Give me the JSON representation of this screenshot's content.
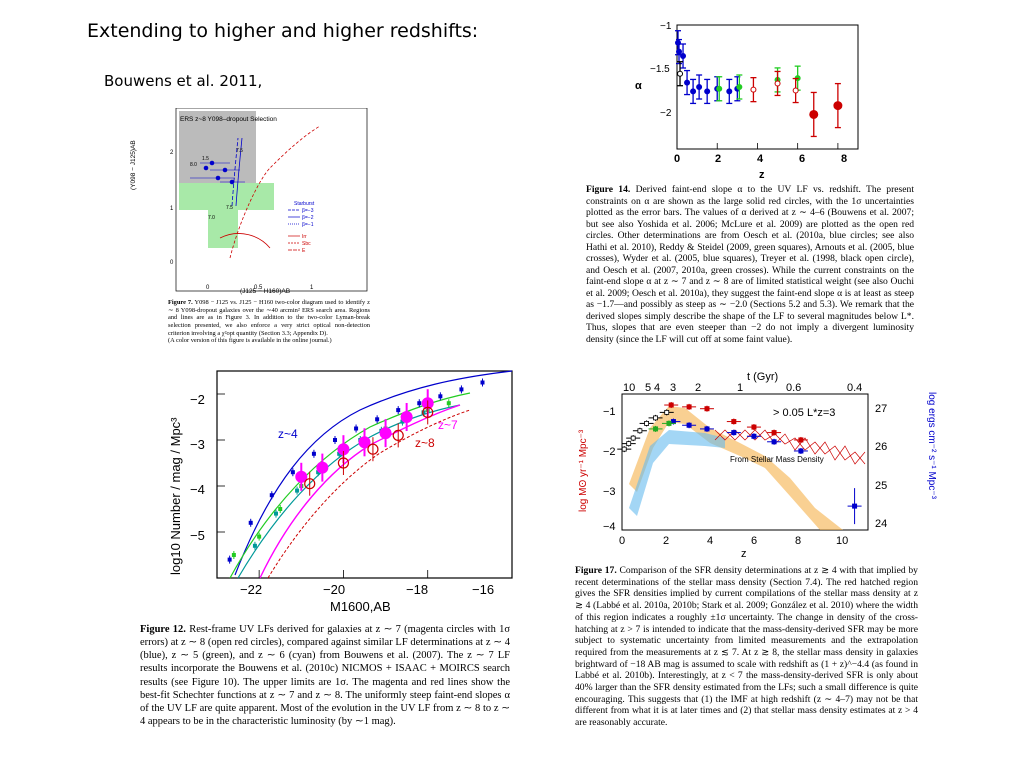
{
  "slide": {
    "title": "Extending to higher and higher redshifts:",
    "subtitle": "Bouwens et al. 2011,"
  },
  "fig7": {
    "label": "Figure 7.",
    "caption": "Y098 − J125 vs. J125 − H160 two-color diagram used to identify z ∼ 8 Y098-dropout galaxies over the ∼40 arcmin² ERS search area. Regions and lines are as in Figure 3. In addition to the two-color Lyman-break selection presented, we also enforce a very strict optical non-detection criterion involving a χ²opt quantity (Section 3.3; Appendix D).",
    "note": "(A color version of this figure is available in the online journal.)",
    "panel_title": "ERS z~8 Y098–dropout Selection",
    "xlabel": "(J125 − H160)AB",
    "ylabel": "(Y098 − J125)AB",
    "xticks": [
      "0",
      "0.5",
      "1"
    ],
    "yticks": [
      "0",
      "1",
      "2"
    ],
    "legend": [
      "Starburst",
      "β=−3",
      "β=−2",
      "β=−1",
      "Irr",
      "Sbc",
      "E"
    ],
    "markers": [
      "1.5",
      "7.5",
      "7.0",
      "8.0",
      "7.5"
    ]
  },
  "fig14": {
    "label": "Figure 14.",
    "caption": "Derived faint-end slope α to the UV LF vs. redshift. The present constraints on α are shown as the large solid red circles, with the 1σ uncertainties plotted as the error bars. The values of α derived at z ∼ 4–6 (Bouwens et al. 2007; but see also Yoshida et al. 2006; McLure et al. 2009) are plotted as the open red circles. Other determinations are from Oesch et al. (2010a, blue circles; see also Hathi et al. 2010), Reddy & Steidel (2009, green squares), Arnouts et al. (2005, blue crosses), Wyder et al. (2005, blue squares), Treyer et al. (1998, black open circle), and Oesch et al. (2007, 2010a, green crosses). While the current constraints on the faint-end slope α at z ∼ 7 and z ∼ 8 are of limited statistical weight (see also Ouchi et al. 2009; Oesch et al. 2010a), they suggest the faint-end slope α is at least as steep as −1.7—and possibly as steep as ∼ −2.0 (Sections 5.2 and 5.3). We remark that the derived slopes simply describe the shape of the LF to several magnitudes below L*. Thus, slopes that are even steeper than −2 do not imply a divergent luminosity density (since the LF will cut off at some faint value).",
    "ylabel": "α",
    "xlabel": "z",
    "xticks": [
      "0",
      "2",
      "4",
      "6",
      "8"
    ],
    "yticks": [
      "−1",
      "−1.5",
      "−2"
    ]
  },
  "fig12": {
    "label": "Figure 12.",
    "caption": "Rest-frame UV LFs derived for galaxies at z ∼ 7 (magenta circles with 1σ errors) at z ∼ 8 (open red circles), compared against similar LF determinations at z ∼ 4 (blue), z ∼ 5 (green), and z ∼ 6 (cyan) from Bouwens et al. (2007). The z ∼ 7 LF results incorporate the Bouwens et al. (2010c) NICMOS + ISAAC + MOIRCS search results (see Figure 10). The upper limits are 1σ. The magenta and red lines show the best-fit Schechter functions at z ∼ 7 and z ∼ 8. The uniformly steep faint-end slopes α of the UV LF are quite apparent. Most of the evolution in the UV LF from z ∼ 8 to z ∼ 4 appears to be in the characteristic luminosity (by ∼1 mag).",
    "ylabel": "log10 Number / mag / Mpc³",
    "xlabel": "M1600,AB",
    "xticks": [
      "−22",
      "−20",
      "−18",
      "−16"
    ],
    "yticks": [
      "−2",
      "−3",
      "−4",
      "−5"
    ],
    "labels": [
      "z~4",
      "z~7",
      "z~8"
    ]
  },
  "fig17": {
    "label": "Figure 17.",
    "caption": "Comparison of the SFR density determinations at z ≳ 4 with that implied by recent determinations of the stellar mass density (Section 7.4). The red hatched region gives the SFR densities implied by current compilations of the stellar mass density at z ≳ 4 (Labbé et al. 2010a, 2010b; Stark et al. 2009; González et al. 2010) where the width of this region indicates a roughly ±1σ uncertainty. The change in density of the cross-hatching at z > 7 is intended to indicate that the mass-density-derived SFR may be more subject to systematic uncertainty from limited measurements and the extrapolation required from the measurements at z ≲ 7. At z ≳ 8, the stellar mass density in galaxies brightward of −18 AB mag is assumed to scale with redshift as (1 + z)^−4.4 (as found in Labbé et al. 2010b). Interestingly, at z < 7 the mass-density-derived SFR is only about 40% larger than the SFR density estimated from the LFs; such a small difference is quite encouraging. This suggests that (1) the IMF at high redshift (z ∼ 4–7) may not be that different from what it is at later times and (2) that stellar mass density estimates at z > 4 are reasonably accurate.",
    "top_axis_label": "t (Gyr)",
    "top_ticks": [
      "10",
      "5",
      "4",
      "3",
      "2",
      "1",
      "0.6",
      "0.4"
    ],
    "xlabel": "z",
    "xticks": [
      "0",
      "2",
      "4",
      "6",
      "8",
      "10"
    ],
    "ylabel_left": "log Mʘ yr⁻¹ Mpc⁻³",
    "ylabel_right": "log ergs cm⁻² s⁻¹ Mpc⁻³",
    "yticks_left": [
      "−1",
      "−2",
      "−3",
      "−4"
    ],
    "yticks_right": [
      "27",
      "26",
      "25",
      "24"
    ],
    "annotation_lum": "> 0.05 L*z=3",
    "annotation_mass": "From Stellar Mass Density"
  },
  "chart_data": [
    {
      "type": "scatter",
      "title": "",
      "xlabel": "z",
      "ylabel": "α",
      "xlim": [
        0,
        9
      ],
      "ylim": [
        -2.4,
        -1
      ],
      "series": [
        {
          "name": "",
          "color": "#0000cc",
          "x": [
            0.05,
            0.1,
            0.3,
            0.5,
            0.8,
            1.1,
            1.5,
            2.0,
            2.6,
            3.0
          ],
          "y": [
            -1.2,
            -1.3,
            -1.35,
            -1.65,
            -1.75,
            -1.7,
            -1.75,
            -1.72,
            -1.75,
            -1.72
          ]
        },
        {
          "name": "",
          "color": "#22cc22",
          "x": [
            2.1,
            3.1,
            5.0,
            6.0
          ],
          "y": [
            -1.72,
            -1.7,
            -1.62,
            -1.6
          ]
        },
        {
          "name": "",
          "color": "#000000",
          "x": [
            0.15
          ],
          "y": [
            -1.55
          ]
        },
        {
          "name": "",
          "color": "#cc0000",
          "x": [
            3.8,
            5.0,
            5.9
          ],
          "y": [
            -1.73,
            -1.66,
            -1.74
          ]
        },
        {
          "name": "",
          "color": "#cc0000",
          "x": [
            6.8,
            8.0
          ],
          "y": [
            -2.01,
            -1.91
          ]
        }
      ]
    },
    {
      "type": "scatter",
      "title": "",
      "xlabel": "M1600,AB",
      "ylabel": "log10 Number / mag / Mpc³",
      "xlim": [
        -23,
        -16
      ],
      "ylim": [
        -6,
        -1.5
      ],
      "series": [
        {
          "name": "z~4",
          "color": "#0000cc",
          "x": [
            -22.7,
            -22.2,
            -21.7,
            -21.2,
            -20.7,
            -20.2,
            -19.7,
            -19.2,
            -18.7,
            -18.2,
            -17.7,
            -17.2,
            -16.7
          ],
          "y": [
            -5.6,
            -4.8,
            -4.2,
            -3.7,
            -3.3,
            -3.0,
            -2.75,
            -2.55,
            -2.35,
            -2.2,
            -2.05,
            -1.9,
            -1.75
          ]
        },
        {
          "name": "",
          "color": "#22cc22",
          "x": [
            -22.6,
            -22.0,
            -21.5,
            -21.0,
            -20.5,
            -20.0,
            -19.5,
            -19.0,
            -18.5,
            -18.0,
            -17.5
          ],
          "y": [
            -5.5,
            -5.1,
            -4.5,
            -4.0,
            -3.6,
            -3.25,
            -3.0,
            -2.75,
            -2.55,
            -2.35,
            -2.2
          ]
        },
        {
          "name": "",
          "color": "#009999",
          "x": [
            -22.1,
            -21.6,
            -21.1,
            -20.6,
            -20.1,
            -19.6,
            -19.1,
            -18.6,
            -18.1
          ],
          "y": [
            -5.3,
            -4.6,
            -4.1,
            -3.7,
            -3.3,
            -3.0,
            -2.8,
            -2.6,
            -2.4
          ]
        },
        {
          "name": "z~7",
          "color": "#ff00ff",
          "x": [
            -21.0,
            -20.5,
            -20.0,
            -19.5,
            -19.0,
            -18.5,
            -18.0
          ],
          "y": [
            -3.8,
            -3.6,
            -3.2,
            -3.05,
            -2.85,
            -2.5,
            -2.2
          ]
        },
        {
          "name": "z~8",
          "color": "#cc0000",
          "x": [
            -20.8,
            -20.0,
            -19.3,
            -18.7,
            -18.0
          ],
          "y": [
            -3.95,
            -3.5,
            -3.2,
            -2.9,
            -2.4
          ]
        }
      ]
    },
    {
      "type": "line",
      "title": "",
      "xlabel": "z",
      "ylabel": "log Mʘ yr⁻¹ Mpc⁻³",
      "xlim": [
        0,
        11
      ],
      "ylim": [
        -4.2,
        -0.5
      ],
      "series": [
        {
          "name": "",
          "color": "#cc0000",
          "x": [
            2.2,
            3.0,
            3.8,
            5.0,
            5.9,
            6.8,
            8.0
          ],
          "y": [
            -0.8,
            -0.85,
            -0.9,
            -1.25,
            -1.4,
            -1.55,
            -1.75
          ]
        },
        {
          "name": "",
          "color": "#0000cc",
          "x": [
            2.3,
            3.0,
            3.8,
            5.0,
            5.9,
            6.8,
            8.0,
            10.4
          ],
          "y": [
            -1.25,
            -1.35,
            -1.45,
            -1.55,
            -1.65,
            -1.8,
            -2.05,
            -3.55
          ]
        },
        {
          "name": "",
          "color": "#000000",
          "x": [
            0.1,
            0.3,
            0.5,
            0.8,
            1.1,
            1.5,
            2.0
          ],
          "y": [
            -2.0,
            -1.85,
            -1.7,
            -1.5,
            -1.3,
            -1.15,
            -1.0
          ]
        },
        {
          "name": "",
          "color": "#22aa22",
          "x": [
            1.5,
            2.1
          ],
          "y": [
            -1.45,
            -1.3
          ]
        }
      ]
    }
  ]
}
